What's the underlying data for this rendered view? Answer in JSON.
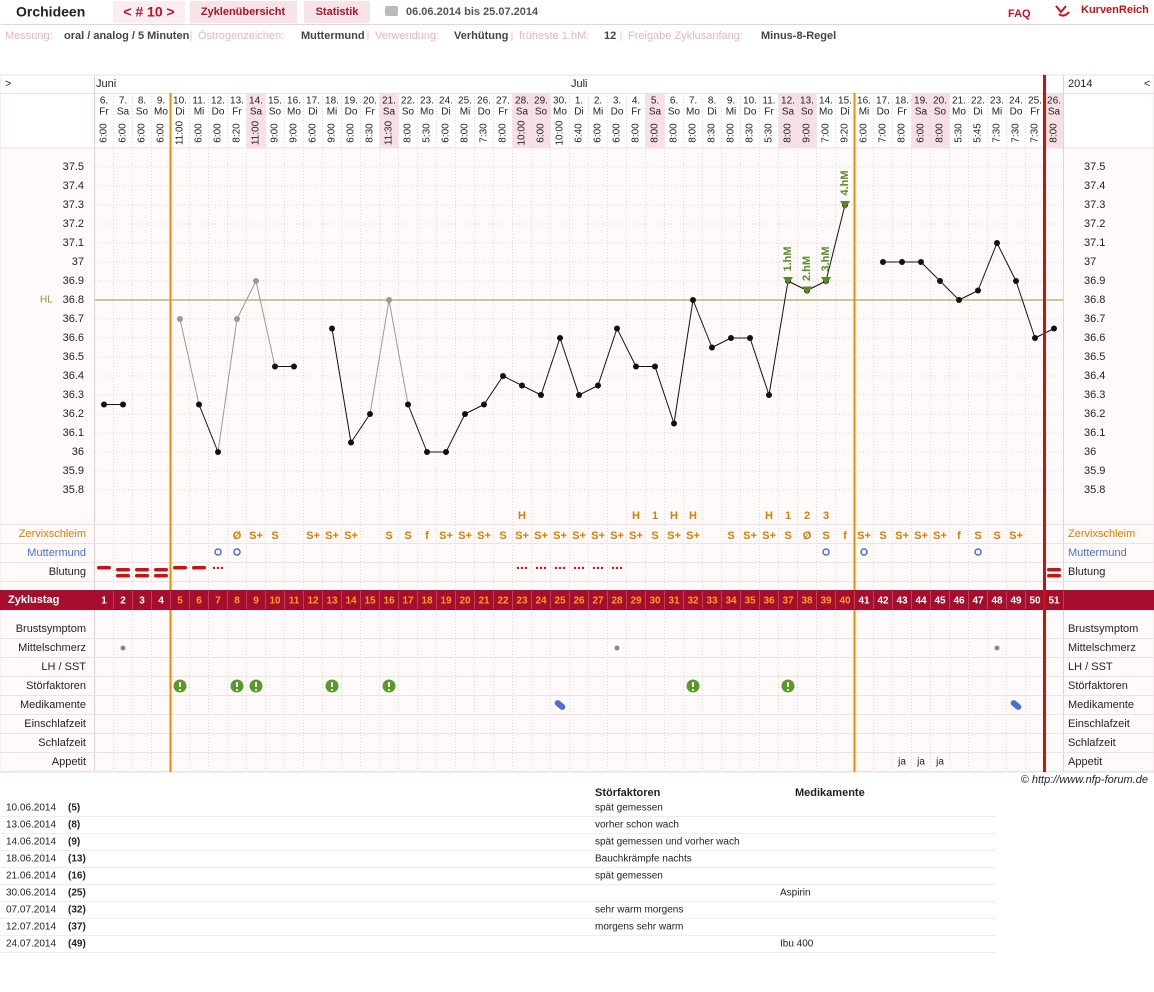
{
  "header": {
    "title": "Orchideen",
    "cycle": "< # 10 >",
    "nav": [
      "Zyklenübersicht",
      "Statistik"
    ],
    "range": "06.06.2014 bis 25.07.2014",
    "faq": "FAQ",
    "brand": "KurvenReich"
  },
  "info": [
    {
      "label": "Messung:",
      "value": "oral / analog / 5 Minuten"
    },
    {
      "label": "Östrogenzeichen:",
      "value": "Muttermund"
    },
    {
      "label": "Verwendung:",
      "value": "Verhütung"
    },
    {
      "label": "früheste 1.hM:",
      "value": "12"
    },
    {
      "label": "Freigabe Zyklusanfang:",
      "value": "Minus-8-Regel"
    }
  ],
  "chart_data": {
    "type": "line",
    "nav_left": ">",
    "nav_right": "<",
    "year": "2014",
    "months": [
      {
        "label": "Juni",
        "day": 1
      },
      {
        "label": "Juli",
        "day": 26
      }
    ],
    "categories": [
      "6.",
      "7.",
      "8.",
      "9.",
      "10.",
      "11.",
      "12.",
      "13.",
      "14.",
      "15.",
      "16.",
      "17.",
      "18.",
      "19.",
      "20.",
      "21.",
      "22.",
      "23.",
      "24.",
      "25.",
      "26.",
      "27.",
      "28.",
      "29.",
      "30.",
      "1.",
      "2.",
      "3.",
      "4.",
      "5.",
      "6.",
      "7.",
      "8.",
      "9.",
      "10.",
      "11.",
      "12.",
      "13.",
      "14.",
      "15.",
      "16.",
      "17.",
      "18.",
      "19.",
      "20.",
      "21.",
      "22.",
      "23.",
      "24.",
      "25.",
      "26."
    ],
    "weekdays": [
      "Fr",
      "Sa",
      "So",
      "Mo",
      "Di",
      "Mi",
      "Do",
      "Fr",
      "Sa",
      "So",
      "Mo",
      "Di",
      "Mi",
      "Do",
      "Fr",
      "Sa",
      "So",
      "Mo",
      "Di",
      "Mi",
      "Do",
      "Fr",
      "Sa",
      "So",
      "Mo",
      "Di",
      "Mi",
      "Do",
      "Fr",
      "Sa",
      "So",
      "Mo",
      "Di",
      "Mi",
      "Do",
      "Fr",
      "Sa",
      "So",
      "Mo",
      "Di",
      "Mi",
      "Do",
      "Fr",
      "Sa",
      "So",
      "Mo",
      "Di",
      "Mi",
      "Do",
      "Fr",
      "Sa"
    ],
    "times": [
      "6:00",
      "6:00",
      "6:00",
      "6:00",
      "11:00",
      "6:00",
      "6:00",
      "8:20",
      "11:00",
      "9:00",
      "9:00",
      "6:00",
      "9:00",
      "6:00",
      "8:30",
      "11:30",
      "8:00",
      "5:30",
      "6:00",
      "8:00",
      "7:30",
      "8:00",
      "10:00",
      "6:00",
      "10:00",
      "6:40",
      "6:00",
      "6:00",
      "8:00",
      "8:00",
      "8:00",
      "8:00",
      "8:30",
      "8:00",
      "8:30",
      "5:30",
      "8:00",
      "9:00",
      "7:00",
      "9:20",
      "6:00",
      "7:00",
      "8:00",
      "6:00",
      "8:00",
      "5:30",
      "5:45",
      "7:30",
      "7:30",
      "7:30",
      "8:00"
    ],
    "shaded_days": [
      9,
      16,
      23,
      24,
      30,
      37,
      38,
      44,
      45,
      51
    ],
    "values": [
      36.25,
      36.25,
      null,
      null,
      36.7,
      36.25,
      36.0,
      36.7,
      36.9,
      36.45,
      36.45,
      null,
      36.65,
      36.05,
      36.2,
      36.8,
      36.25,
      36.0,
      36.0,
      36.2,
      36.25,
      36.4,
      36.35,
      36.3,
      36.6,
      36.3,
      36.35,
      36.65,
      36.45,
      36.45,
      36.15,
      36.8,
      36.55,
      36.6,
      36.6,
      36.3,
      36.9,
      36.85,
      36.9,
      37.3,
      null,
      37.0,
      37.0,
      37.0,
      36.9,
      36.8,
      36.85,
      37.1,
      36.9,
      36.6,
      36.65
    ],
    "excluded_days": [
      5,
      8,
      9,
      16
    ],
    "color": "#111111",
    "excluded_color": "#999999",
    "ylim": [
      35.6,
      37.6
    ],
    "yticks": [
      35.8,
      35.9,
      36,
      36.1,
      36.2,
      36.3,
      36.4,
      36.5,
      36.6,
      36.7,
      36.8,
      36.9,
      37,
      37.1,
      37.2,
      37.3,
      37.4,
      37.5
    ],
    "grid": true,
    "hl": {
      "label": "HL",
      "value": 36.8,
      "color": "#8a9a3a"
    },
    "hochlagen": {
      "days": [
        37,
        38,
        39,
        40
      ],
      "labels": [
        "1.hM",
        "2.hM",
        "3.hM",
        "4.hM"
      ],
      "color": "#5a8a2a"
    },
    "cycle_boundaries": [
      5,
      41
    ],
    "boundary_color": "#f08a00",
    "today": 51,
    "today_color": "#cc1111",
    "row_labels": [
      "Zervixschleim",
      "Muttermund",
      "Blutung",
      "Zyklustag",
      "Brustsymptom",
      "Mittelschmerz",
      "LH / SST",
      "Störfaktoren",
      "Medikamente",
      "Einschlafzeit",
      "Schlafzeit",
      "Appetit"
    ],
    "zervix": [
      null,
      null,
      null,
      null,
      null,
      null,
      null,
      "Ø",
      "S+",
      "S",
      null,
      "S+",
      "S+",
      "S+",
      null,
      "S",
      "S",
      "f",
      "S+",
      "S+",
      "S+",
      "S",
      "S+",
      "S+",
      "S+",
      "S+",
      "S+",
      "S+",
      "S+",
      "S",
      "S+",
      "S+",
      null,
      "S",
      "S+",
      "S+",
      "S",
      "Ø",
      "S",
      "f",
      "S+",
      "S",
      "S+",
      "S+",
      "S+",
      "f",
      "S",
      "S",
      "S+",
      null,
      null
    ],
    "peaks": [
      null,
      null,
      null,
      null,
      null,
      null,
      null,
      null,
      null,
      null,
      null,
      null,
      null,
      null,
      null,
      null,
      null,
      null,
      null,
      null,
      null,
      null,
      "H",
      null,
      null,
      null,
      null,
      null,
      "H",
      "1",
      "H",
      "H",
      null,
      null,
      null,
      "H",
      "1",
      "2",
      "3",
      null,
      null,
      null,
      null,
      null,
      null,
      null,
      null,
      null,
      null,
      null,
      null
    ],
    "muttermund_days": [
      7,
      8,
      39,
      41,
      47
    ],
    "blutung": [
      2,
      3,
      3,
      3,
      2,
      2,
      1,
      null,
      null,
      null,
      null,
      null,
      null,
      null,
      null,
      null,
      null,
      null,
      null,
      null,
      null,
      null,
      1,
      1,
      1,
      1,
      1,
      1,
      null,
      null,
      null,
      null,
      null,
      null,
      null,
      null,
      null,
      null,
      null,
      null,
      null,
      null,
      null,
      null,
      null,
      null,
      null,
      null,
      null,
      null,
      3
    ],
    "zyklustag": [
      1,
      2,
      3,
      4,
      5,
      6,
      7,
      8,
      9,
      10,
      11,
      12,
      13,
      14,
      15,
      16,
      17,
      18,
      19,
      20,
      21,
      22,
      23,
      24,
      25,
      26,
      27,
      28,
      29,
      30,
      31,
      32,
      33,
      34,
      35,
      36,
      37,
      38,
      39,
      40,
      41,
      42,
      43,
      44,
      45,
      46,
      47,
      48,
      49,
      50,
      51
    ],
    "mittelschmerz_days": [
      2,
      28,
      48
    ],
    "stoerfaktoren_days": [
      5,
      8,
      9,
      13,
      16,
      32,
      37
    ],
    "medikamente_days": [
      25,
      49
    ],
    "appetit": {
      "label": "ja",
      "days": [
        43,
        44,
        45
      ]
    }
  },
  "copyright": "© http://www.nfp-forum.de",
  "notes": {
    "headers": [
      "Störfaktoren",
      "Medikamente"
    ],
    "rows": [
      [
        "10.06.2014",
        "(5)",
        "spät gemessen",
        null
      ],
      [
        "13.06.2014",
        "(8)",
        "vorher schon wach",
        null
      ],
      [
        "14.06.2014",
        "(9)",
        "spät gemessen und vorher wach",
        null
      ],
      [
        "18.06.2014",
        "(13)",
        "Bauchkrämpfe nachts",
        null
      ],
      [
        "21.06.2014",
        "(16)",
        "spät gemessen",
        null
      ],
      [
        "30.06.2014",
        "(25)",
        null,
        "Aspirin"
      ],
      [
        "07.07.2014",
        "(32)",
        "sehr warm morgens",
        null
      ],
      [
        "12.07.2014",
        "(37)",
        "morgens sehr warm",
        null
      ],
      [
        "24.07.2014",
        "(49)",
        null,
        "Ibu 400"
      ]
    ]
  }
}
